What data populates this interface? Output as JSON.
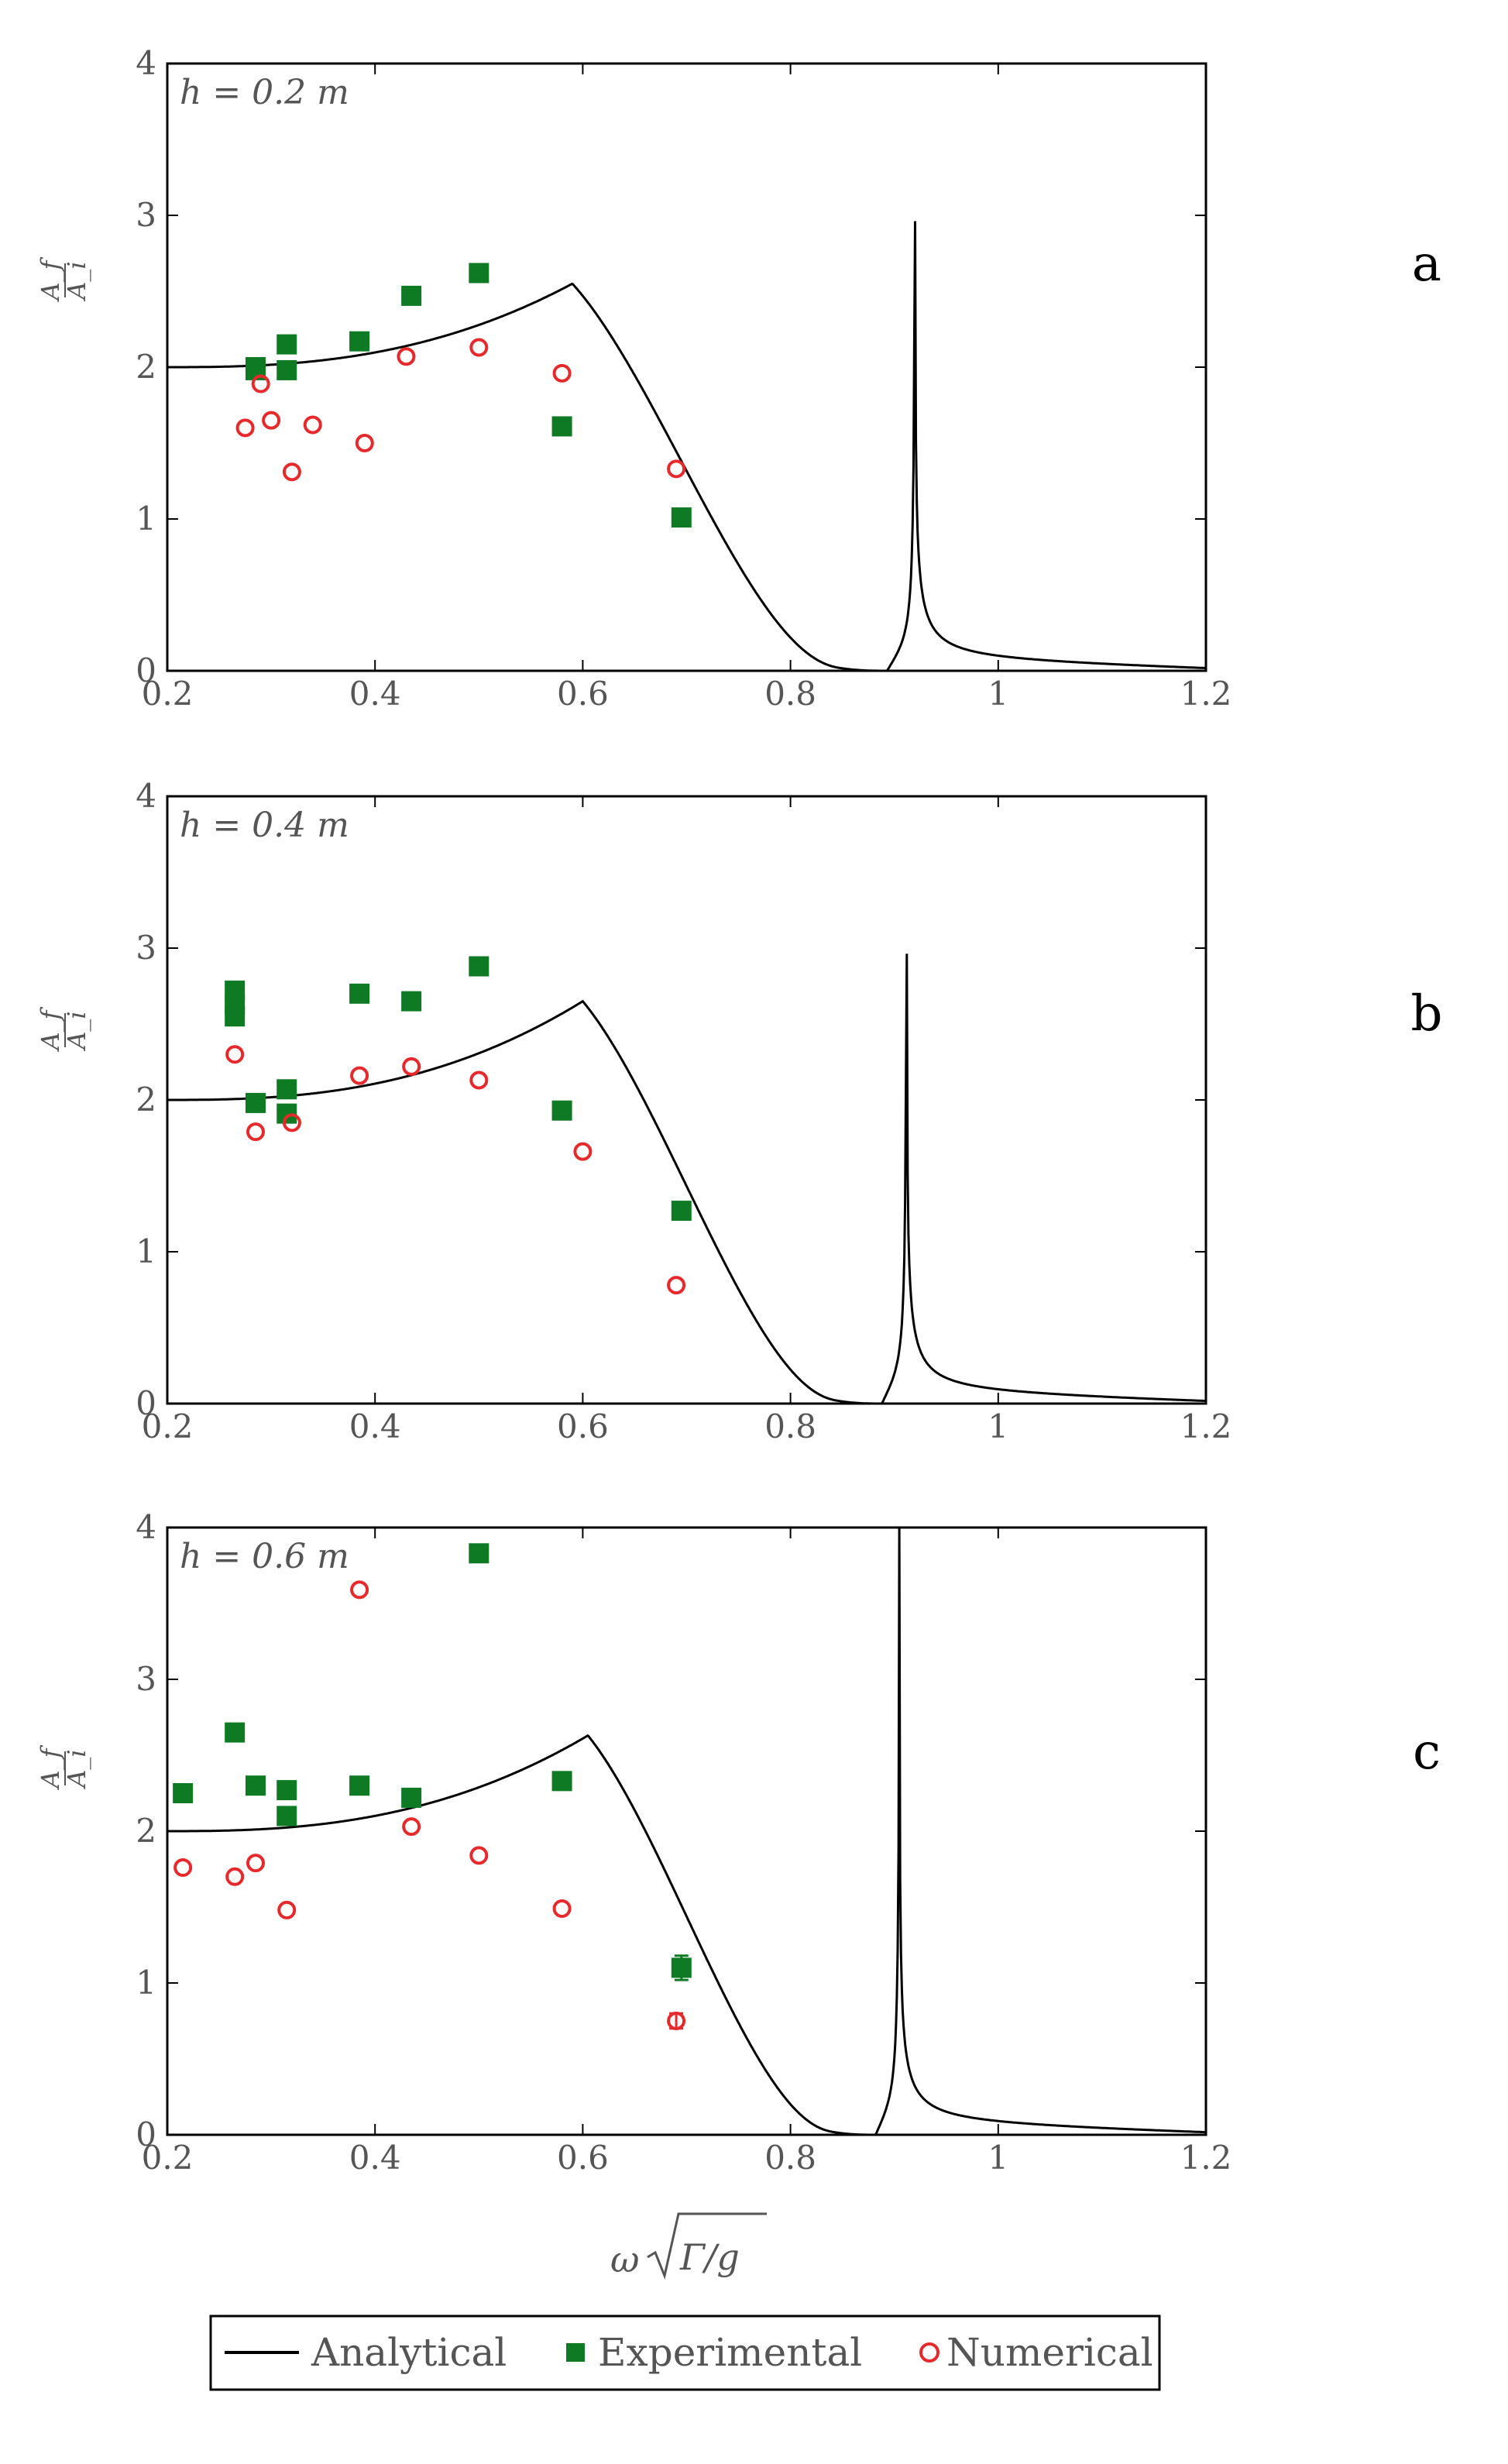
{
  "legend": {
    "analytical": "Analytical",
    "experimental": "Experimental",
    "numerical": "Numerical"
  },
  "colors": {
    "analytical": "#000000",
    "experimental": "#0f7a24",
    "numerical": "#e8292b"
  },
  "xlabel": "ω √(Γ/g)",
  "ylabel": "A_f / A_i",
  "chart_data": [
    {
      "type": "scatter",
      "panel": "a",
      "annotation": "h = 0.2 m",
      "xlim": [
        0.2,
        1.2
      ],
      "ylim": [
        0,
        4
      ],
      "xticks": [
        "0.2",
        "0.4",
        "0.6",
        "0.8",
        "1",
        "1.2"
      ],
      "yticks": [
        "0",
        "1",
        "2",
        "3",
        "4"
      ],
      "ylabel_num": "A_f",
      "ylabel_den": "A_i",
      "analytical": {
        "x0": 2.0,
        "peak_x": 0.59,
        "peak_y": 2.55,
        "zero_x": 0.893,
        "res_x": 0.92
      },
      "series": [
        {
          "name": "Experimental",
          "x": [
            0.285,
            0.285,
            0.315,
            0.315,
            0.385,
            0.435,
            0.5,
            0.58,
            0.695
          ],
          "y": [
            1.98,
            2.0,
            1.98,
            2.15,
            2.17,
            2.47,
            2.62,
            1.61,
            1.01
          ]
        },
        {
          "name": "Numerical",
          "x": [
            0.275,
            0.29,
            0.3,
            0.32,
            0.34,
            0.39,
            0.43,
            0.5,
            0.58,
            0.69
          ],
          "y": [
            1.6,
            1.89,
            1.65,
            1.31,
            1.62,
            1.5,
            2.07,
            2.13,
            1.96,
            1.33
          ]
        }
      ]
    },
    {
      "type": "scatter",
      "panel": "b",
      "annotation": "h = 0.4 m",
      "xlim": [
        0.2,
        1.2
      ],
      "ylim": [
        0,
        4
      ],
      "xticks": [
        "0.2",
        "0.4",
        "0.6",
        "0.8",
        "1",
        "1.2"
      ],
      "yticks": [
        "0",
        "1",
        "2",
        "3",
        "4"
      ],
      "ylabel_num": "A_f",
      "ylabel_den": "A_i",
      "analytical": {
        "x0": 2.0,
        "peak_x": 0.6,
        "peak_y": 2.65,
        "zero_x": 0.888,
        "res_x": 0.912
      },
      "series": [
        {
          "name": "Experimental",
          "x": [
            0.265,
            0.265,
            0.265,
            0.285,
            0.315,
            0.315,
            0.385,
            0.435,
            0.5,
            0.58,
            0.695
          ],
          "y": [
            2.72,
            2.63,
            2.55,
            1.98,
            2.07,
            1.91,
            2.7,
            2.65,
            2.88,
            1.93,
            1.27
          ]
        },
        {
          "name": "Numerical",
          "x": [
            0.265,
            0.285,
            0.32,
            0.385,
            0.435,
            0.5,
            0.6,
            0.69
          ],
          "y": [
            2.3,
            1.79,
            1.85,
            2.16,
            2.22,
            2.13,
            1.66,
            0.78
          ]
        }
      ]
    },
    {
      "type": "scatter",
      "panel": "c",
      "annotation": "h = 0.6 m",
      "xlim": [
        0.2,
        1.2
      ],
      "ylim": [
        0,
        4
      ],
      "xticks": [
        "0.2",
        "0.4",
        "0.6",
        "0.8",
        "1",
        "1.2"
      ],
      "yticks": [
        "0",
        "1",
        "2",
        "3",
        "4"
      ],
      "ylabel_num": "A_f",
      "ylabel_den": "A_i",
      "analytical": {
        "x0": 2.0,
        "peak_x": 0.605,
        "peak_y": 2.63,
        "zero_x": 0.882,
        "res_x": 0.905
      },
      "series": [
        {
          "name": "Experimental",
          "x": [
            0.215,
            0.265,
            0.285,
            0.315,
            0.315,
            0.385,
            0.435,
            0.5,
            0.58,
            0.695
          ],
          "y": [
            2.25,
            2.65,
            2.3,
            2.27,
            2.1,
            2.3,
            2.22,
            3.83,
            2.33,
            1.1
          ],
          "errors": [
            0,
            0,
            0,
            0,
            0,
            0,
            0,
            0,
            0,
            0.08
          ]
        },
        {
          "name": "Numerical",
          "x": [
            0.215,
            0.265,
            0.285,
            0.315,
            0.385,
            0.435,
            0.5,
            0.58,
            0.69
          ],
          "y": [
            1.76,
            1.7,
            1.79,
            1.48,
            3.59,
            2.03,
            1.84,
            1.49,
            0.75
          ],
          "errors": [
            0,
            0,
            0,
            0,
            0,
            0,
            0,
            0,
            0.05
          ]
        }
      ]
    }
  ]
}
